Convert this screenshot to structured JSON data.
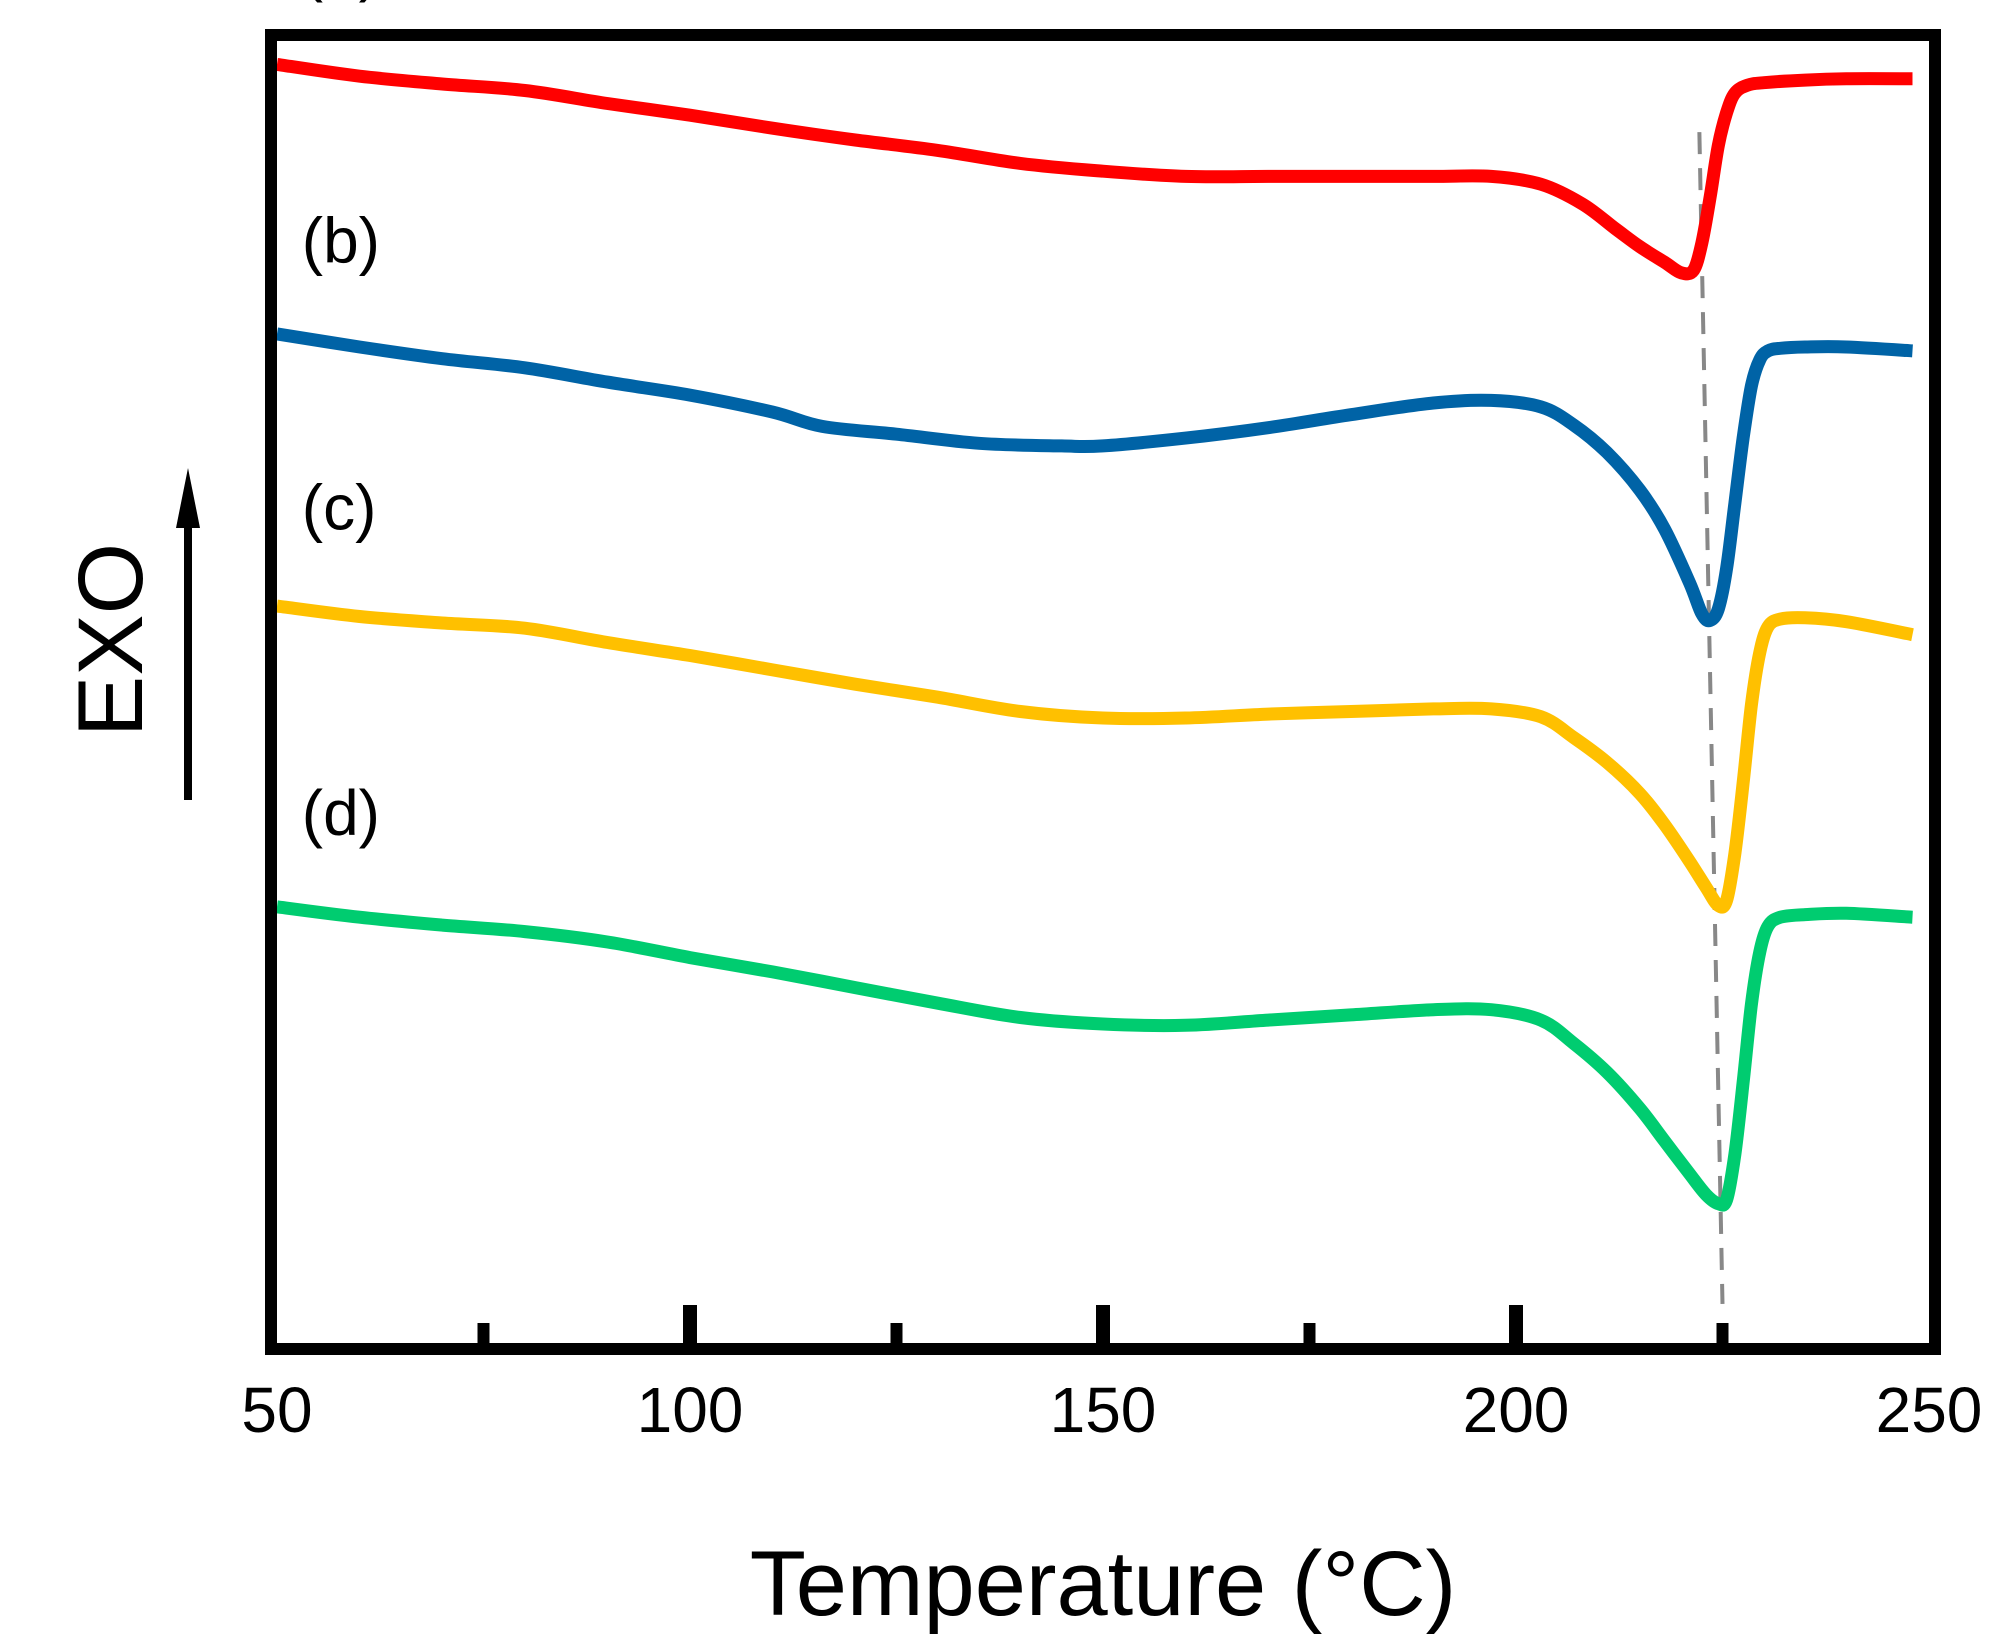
{
  "chart_data": {
    "type": "line",
    "title": "",
    "xlabel": "Temperature (°C)",
    "ylabel": "EXO",
    "xlim": [
      50,
      250
    ],
    "ylim": [
      0,
      10
    ],
    "xticks": [
      50,
      100,
      150,
      200,
      250
    ],
    "minor_xticks": [
      75,
      125,
      175,
      225
    ],
    "yticks_shown": false,
    "grid": false,
    "legend": "none",
    "ylabel_arrow": "up",
    "colors": {
      "axis": "#000000",
      "guide": "#888888"
    },
    "guides": [
      {
        "type": "dashed-line",
        "x_top": 222.2,
        "y_top": 9.3,
        "x_bottom": 225.0,
        "y_bottom": 0.3
      }
    ],
    "series": [
      {
        "name": "(a)",
        "color": "#ff0000",
        "label_at": {
          "x": 53,
          "y": 10.4
        },
        "x": [
          50,
          60,
          70,
          80,
          90,
          100,
          110,
          120,
          130,
          140,
          150,
          160,
          170,
          180,
          190,
          197,
          203,
          208,
          212,
          215,
          218,
          220,
          221.5,
          222.5,
          223.5,
          224.5,
          225.5,
          226.5,
          228,
          230,
          235,
          240,
          248
        ],
        "y": [
          9.82,
          9.73,
          9.67,
          9.62,
          9.52,
          9.43,
          9.33,
          9.24,
          9.16,
          9.06,
          9.0,
          8.96,
          8.96,
          8.96,
          8.96,
          8.96,
          8.9,
          8.75,
          8.56,
          8.42,
          8.3,
          8.22,
          8.24,
          8.45,
          8.8,
          9.2,
          9.45,
          9.6,
          9.66,
          9.68,
          9.7,
          9.71,
          9.71
        ]
      },
      {
        "name": "(b)",
        "color": "#0063a6",
        "label_at": {
          "x": 53,
          "y": 8.3
        },
        "x": [
          50,
          60,
          70,
          80,
          90,
          100,
          110,
          116,
          125,
          135,
          145,
          150,
          160,
          170,
          180,
          190,
          197,
          203,
          207,
          211,
          215,
          218,
          221,
          222.5,
          223.5,
          224.5,
          225.5,
          226.5,
          227.5,
          228.5,
          229.5,
          230.5,
          232,
          235,
          240,
          248
        ],
        "y": [
          7.75,
          7.65,
          7.56,
          7.49,
          7.38,
          7.28,
          7.15,
          7.04,
          6.98,
          6.91,
          6.89,
          6.89,
          6.95,
          7.03,
          7.13,
          7.22,
          7.24,
          7.19,
          7.05,
          6.84,
          6.55,
          6.25,
          5.84,
          5.6,
          5.55,
          5.64,
          5.95,
          6.45,
          6.95,
          7.35,
          7.55,
          7.62,
          7.64,
          7.65,
          7.65,
          7.62
        ]
      },
      {
        "name": "(c)",
        "color": "#ffc000",
        "label_at": {
          "x": 53,
          "y": 6.25
        },
        "x": [
          50,
          60,
          70,
          80,
          90,
          100,
          110,
          120,
          130,
          140,
          150,
          160,
          170,
          180,
          190,
          197,
          203,
          207,
          211,
          215,
          218,
          221,
          223,
          224.5,
          225.5,
          226.5,
          227.5,
          228.5,
          229.5,
          230.5,
          232,
          235,
          240,
          248
        ],
        "y": [
          5.66,
          5.58,
          5.53,
          5.49,
          5.38,
          5.28,
          5.17,
          5.06,
          4.96,
          4.85,
          4.8,
          4.8,
          4.83,
          4.85,
          4.87,
          4.87,
          4.81,
          4.65,
          4.46,
          4.22,
          3.98,
          3.7,
          3.5,
          3.36,
          3.4,
          3.76,
          4.3,
          4.9,
          5.3,
          5.5,
          5.56,
          5.57,
          5.54,
          5.44
        ]
      },
      {
        "name": "(d)",
        "color": "#00cc70",
        "label_at": {
          "x": 53,
          "y": 3.9
        },
        "x": [
          50,
          60,
          70,
          80,
          90,
          100,
          110,
          120,
          130,
          140,
          150,
          160,
          170,
          180,
          190,
          197,
          203,
          207,
          211,
          215,
          218,
          221,
          223,
          224.5,
          225.5,
          226.5,
          227.5,
          228.5,
          229.5,
          230.5,
          232,
          235,
          240,
          248
        ],
        "y": [
          3.35,
          3.27,
          3.21,
          3.16,
          3.08,
          2.96,
          2.85,
          2.73,
          2.61,
          2.5,
          2.45,
          2.44,
          2.48,
          2.52,
          2.56,
          2.56,
          2.48,
          2.3,
          2.08,
          1.8,
          1.55,
          1.3,
          1.14,
          1.07,
          1.1,
          1.45,
          2.0,
          2.6,
          3.0,
          3.2,
          3.27,
          3.29,
          3.3,
          3.27
        ]
      }
    ]
  }
}
